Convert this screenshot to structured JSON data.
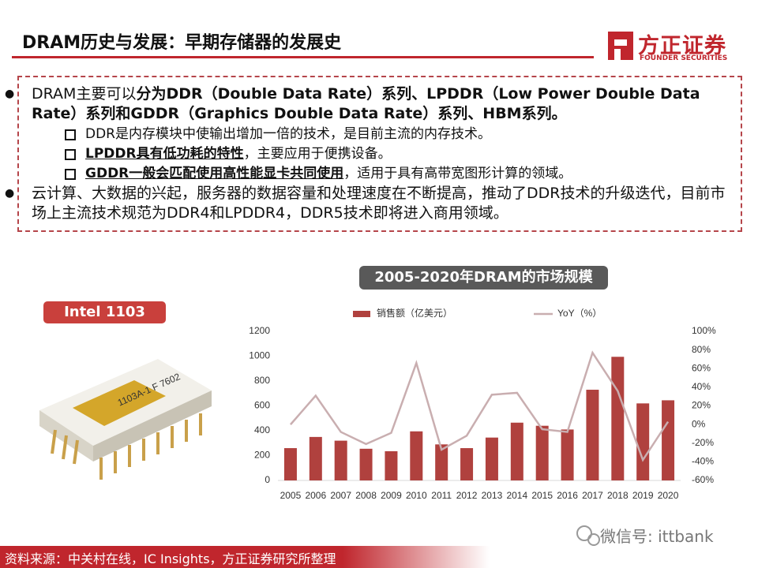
{
  "header": {
    "title": "DRAM历史与发展：早期存储器的发展史",
    "logo_cn": "方正证券",
    "logo_en": "FOUNDER SECURITIES"
  },
  "bullets": [
    {
      "parts": [
        "DRAM主要可以",
        "分为DDR（Double Data Rate）系列、LPDDR（Low Power Double Data Rate）系列和GDDR（Graphics Double Data Rate）系列、HBM系列。"
      ],
      "sub": [
        {
          "parts": [
            "DDR是内存模块中使输出增加一倍的技术，是目前主流的内存技术。"
          ]
        },
        {
          "parts": [
            "LPDDR具有低功耗的特性",
            "，主要应用于便携设备。"
          ]
        },
        {
          "parts": [
            "GDDR一般会匹配使用高性能显卡共同使用",
            "，适用于具有高带宽图形计算的领域。"
          ]
        }
      ]
    },
    {
      "parts": [
        "云计算、大数据的兴起，服务器的数据容量和处理速度在不断提高，推动了DDR技术的升级迭代，目前市场上主流技术规范为DDR4和LPDDR4，DDR5技术即将进入商用领域。"
      ]
    }
  ],
  "image_label": "Intel 1103",
  "source": "资料来源：中关村在线，IC Insights，方正证券研究所整理",
  "watermark": "微信号: ittbank",
  "chart_data": {
    "type": "bar",
    "title": "2005-2020年DRAM的市场规模",
    "categories": [
      "2005",
      "2006",
      "2007",
      "2008",
      "2009",
      "2010",
      "2011",
      "2012",
      "2013",
      "2014",
      "2015",
      "2016",
      "2017",
      "2018",
      "2019",
      "2020"
    ],
    "series": [
      {
        "name": "销售额（亿美元）",
        "color": "#b0413e",
        "values": [
          260,
          350,
          320,
          255,
          235,
          395,
          290,
          260,
          345,
          465,
          440,
          410,
          730,
          995,
          620,
          645
        ]
      },
      {
        "name": "YoY（%）",
        "type": "line",
        "axis": "y2",
        "color": "#c9aeb0",
        "values": [
          0,
          31,
          -8,
          -21,
          -9,
          66,
          -27,
          -12,
          32,
          34,
          -5,
          -8,
          77,
          36,
          -38,
          3
        ]
      }
    ],
    "ylim": [
      0,
      1200
    ],
    "yticks": [
      0,
      200,
      400,
      600,
      800,
      1000,
      1200
    ],
    "y2lim": [
      -60,
      100
    ],
    "y2ticks": [
      {
        "value": -60,
        "label": "-60%"
      },
      {
        "value": -40,
        "label": "-40%"
      },
      {
        "value": -20,
        "label": "-20%"
      },
      {
        "value": 0,
        "label": "0%"
      },
      {
        "value": 20,
        "label": "20%"
      },
      {
        "value": 40,
        "label": "40%"
      },
      {
        "value": 60,
        "label": "60%"
      },
      {
        "value": 80,
        "label": "80%"
      },
      {
        "value": 100,
        "label": "100%"
      }
    ]
  }
}
